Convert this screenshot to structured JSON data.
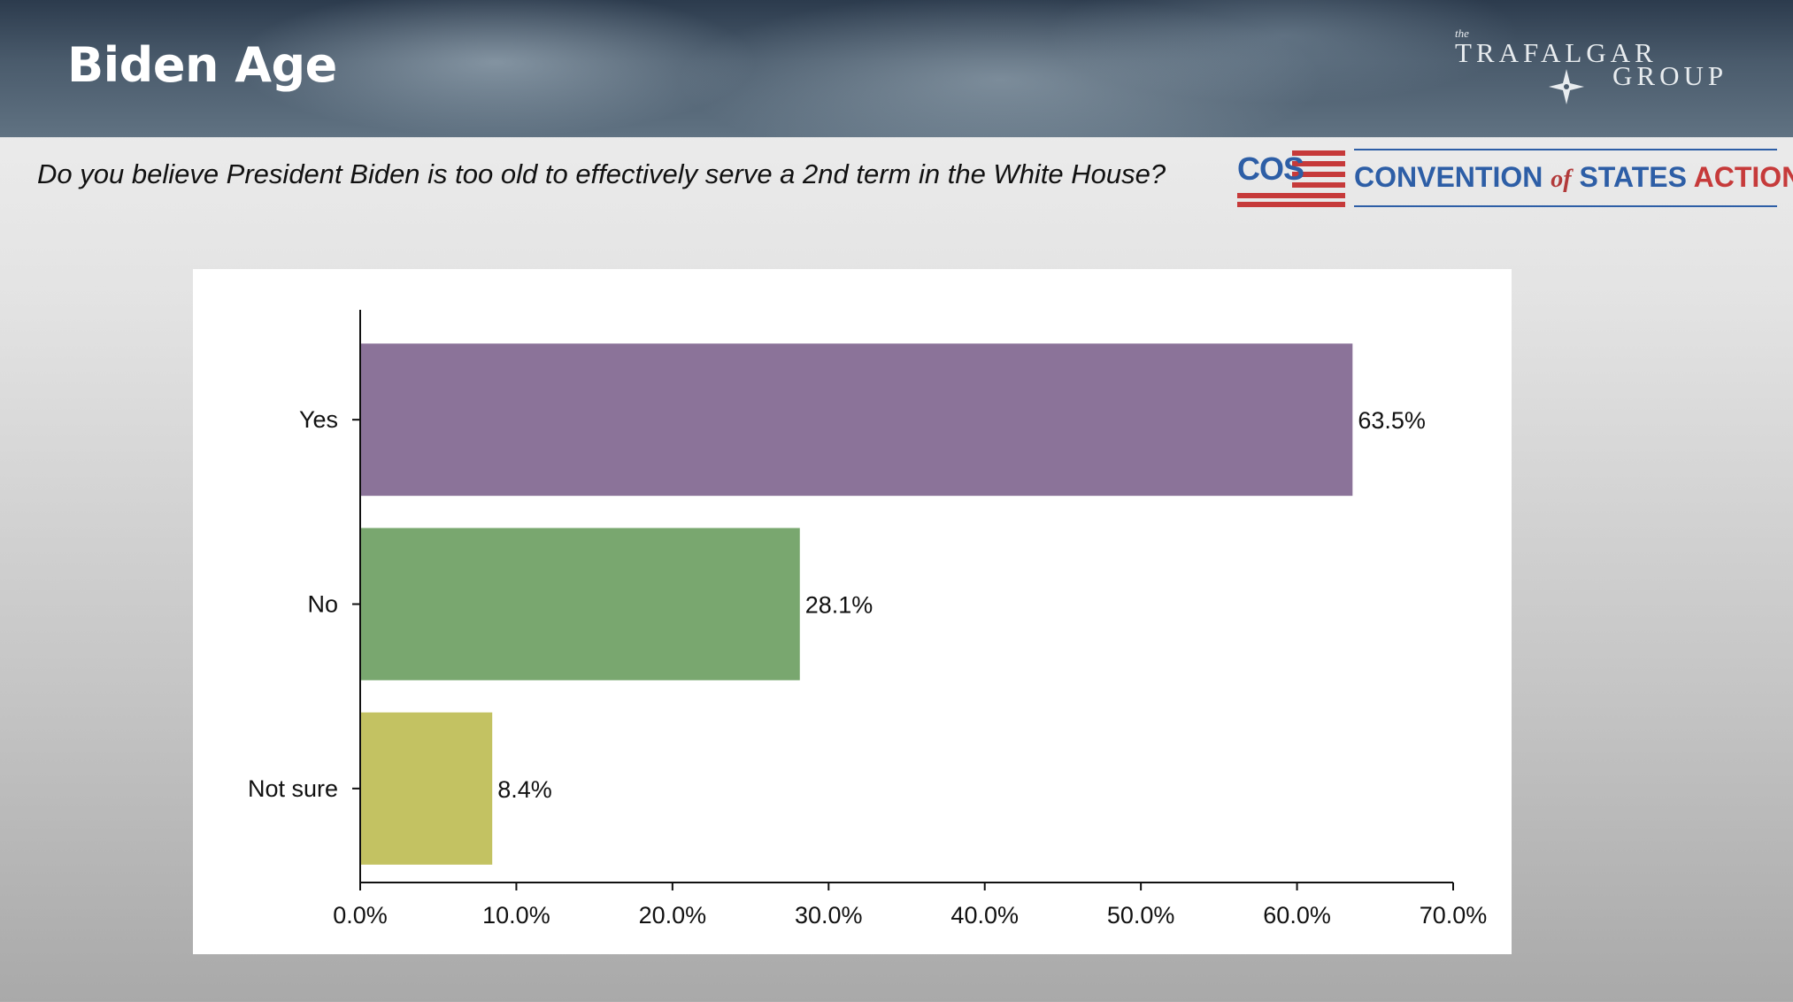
{
  "header": {
    "title": "Biden Age",
    "pollster_logo": {
      "the": "the",
      "line1": "TRAFALGAR",
      "line2": "GROUP"
    }
  },
  "question": "Do you believe President Biden is too old to effectively serve a 2nd term in the White House?",
  "sponsor_logo": {
    "mark": "COS",
    "name_part1": "CONVENTION",
    "name_of": "of",
    "name_part2": "STATES",
    "name_part3": "ACTION",
    "colors": {
      "blue": "#2d5ea6",
      "red": "#c63a3a"
    }
  },
  "chart_data": {
    "type": "bar",
    "orientation": "horizontal",
    "categories": [
      "Yes",
      "No",
      "Not sure"
    ],
    "values": [
      63.5,
      28.1,
      8.4
    ],
    "value_labels": [
      "63.5%",
      "28.1%",
      "8.4%"
    ],
    "colors": [
      "#8b7399",
      "#79a76f",
      "#c3c262"
    ],
    "xlim": [
      0,
      70
    ],
    "x_ticks": [
      0,
      10,
      20,
      30,
      40,
      50,
      60,
      70
    ],
    "x_tick_labels": [
      "0.0%",
      "10.0%",
      "20.0%",
      "30.0%",
      "40.0%",
      "50.0%",
      "60.0%",
      "70.0%"
    ],
    "grid": false,
    "legend": "none"
  }
}
